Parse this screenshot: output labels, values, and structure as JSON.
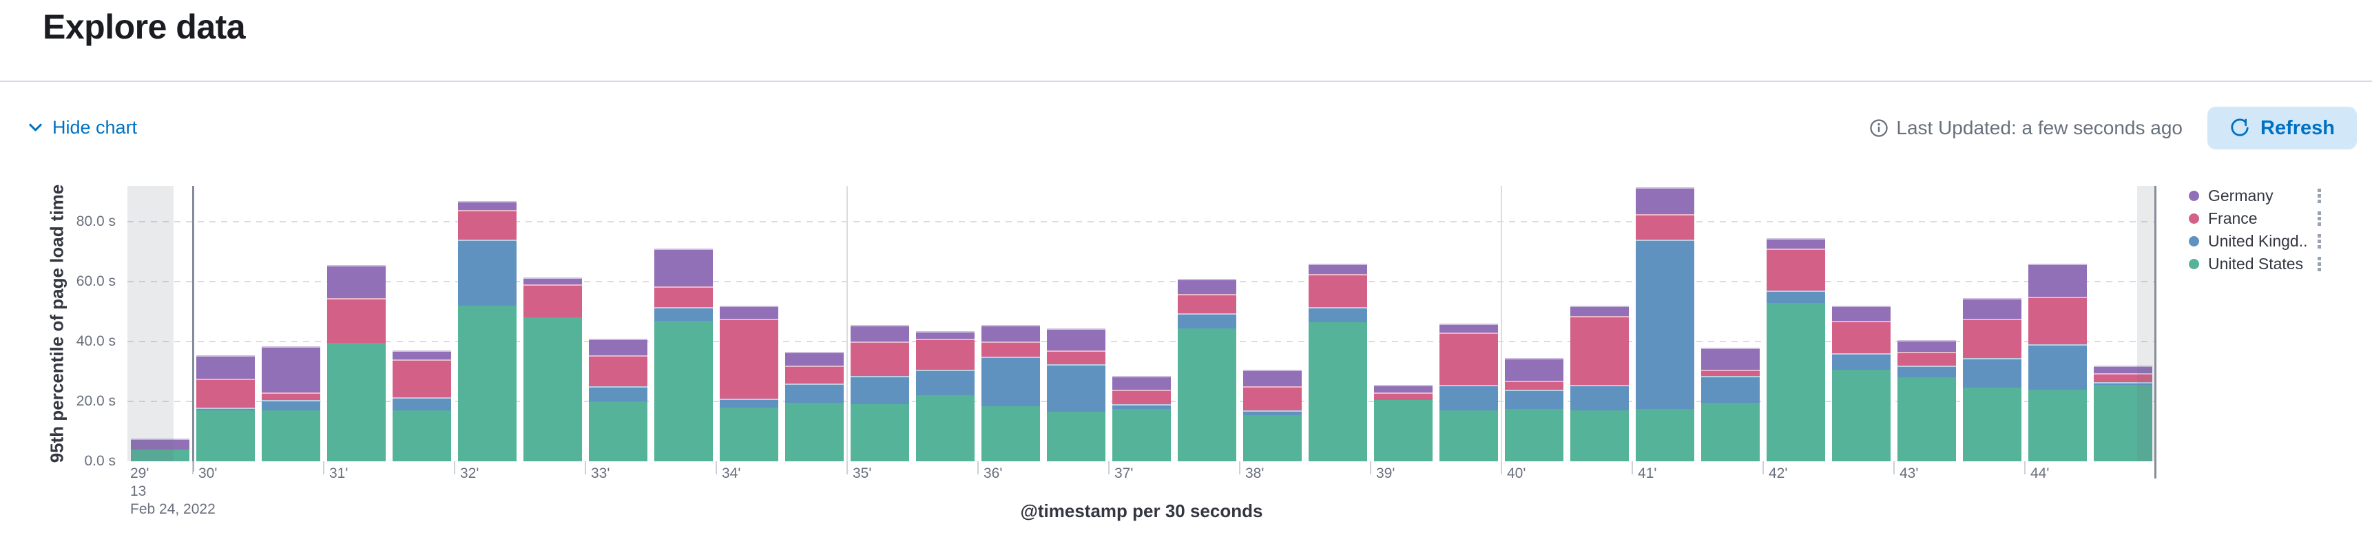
{
  "header": {
    "title": "Explore data"
  },
  "toolbar": {
    "hide_chart_label": "Hide chart",
    "last_updated_label": "Last Updated: a few seconds ago",
    "refresh_label": "Refresh"
  },
  "colors": {
    "accent_blue": "#0071c2",
    "refresh_button_bg": "#d2e7f8",
    "muted_text": "#69707D",
    "title_text": "#1a1c21",
    "axis_text": "#69707D",
    "axis_title_text": "#343741",
    "divider": "#D3DAE6",
    "gridline": "#d8dce3",
    "legend_text": "#343741",
    "legend_action": "#98A2B3"
  },
  "chart_data": {
    "type": "bar",
    "stacked": true,
    "xlabel": "@timestamp per 30 seconds",
    "ylabel": "95th percentile of page load time",
    "unit": "s",
    "ylim": [
      0,
      92
    ],
    "grid": "dashed-horizontal",
    "date": "Feb 24, 2022",
    "x_interval_seconds": 30,
    "categories": [
      "13:29:30",
      "13:30:00",
      "13:30:30",
      "13:31:00",
      "13:31:30",
      "13:32:00",
      "13:32:30",
      "13:33:00",
      "13:33:30",
      "13:34:00",
      "13:34:30",
      "13:35:00",
      "13:35:30",
      "13:36:00",
      "13:36:30",
      "13:37:00",
      "13:37:30",
      "13:38:00",
      "13:38:30",
      "13:39:00",
      "13:39:30",
      "13:40:00",
      "13:40:30",
      "13:41:00",
      "13:41:30",
      "13:42:00",
      "13:42:30",
      "13:43:00",
      "13:43:30",
      "13:44:00",
      "13:44:30"
    ],
    "series": [
      {
        "name": "United States",
        "legend_label": "United States",
        "color": "#54B399",
        "values": [
          4,
          17,
          17,
          39.5,
          17,
          52,
          48,
          20,
          47,
          18,
          19.5,
          19,
          22,
          18.5,
          16.5,
          17.5,
          44.5,
          15.5,
          46.5,
          20.5,
          17,
          17.5,
          17,
          17.5,
          19.5,
          53,
          30.5,
          28,
          24.5,
          24,
          25.5
        ]
      },
      {
        "name": "United Kingdom",
        "legend_label": "United Kingd...",
        "color": "#6092C0",
        "values": [
          0,
          1,
          3.5,
          0,
          4.5,
          22,
          0,
          5,
          4.5,
          3,
          6.5,
          9.5,
          8.5,
          16.5,
          16,
          1.5,
          5,
          1.5,
          5,
          0,
          8.5,
          6.5,
          8.5,
          56.5,
          9,
          4,
          5.5,
          4,
          10,
          15,
          1
        ]
      },
      {
        "name": "France",
        "legend_label": "France",
        "color": "#D36086",
        "values": [
          0,
          9.5,
          2.5,
          15,
          12.5,
          10,
          11,
          10.5,
          7,
          26.5,
          6,
          11.5,
          10.5,
          5,
          4.5,
          5,
          6.5,
          8,
          11,
          2.5,
          17.5,
          3,
          23,
          8.5,
          2,
          14,
          11,
          4.5,
          13,
          16,
          3
        ]
      },
      {
        "name": "Germany",
        "legend_label": "Germany",
        "color": "#9170B8",
        "values": [
          3.5,
          8,
          15.5,
          11,
          3,
          3,
          2.5,
          5.5,
          12.5,
          4.5,
          4.5,
          5.5,
          2.5,
          5.5,
          7.5,
          4.5,
          5,
          5.5,
          3.5,
          2.5,
          3,
          7.5,
          3.5,
          9,
          7.5,
          3.5,
          5,
          4,
          7,
          11,
          2.5
        ]
      }
    ],
    "y_ticks": [
      {
        "value": 0,
        "label": "0.0 s"
      },
      {
        "value": 20,
        "label": "20.0 s"
      },
      {
        "value": 40,
        "label": "40.0 s"
      },
      {
        "value": 60,
        "label": "60.0 s"
      },
      {
        "value": 80,
        "label": "80.0 s"
      }
    ],
    "x_minute_labels": [
      "29'",
      "30'",
      "31'",
      "32'",
      "33'",
      "34'",
      "35'",
      "36'",
      "37'",
      "38'",
      "39'",
      "40'",
      "41'",
      "42'",
      "43'",
      "44'"
    ],
    "x_first_label_extra_lines": [
      "13",
      "Feb 24, 2022"
    ],
    "v_lines": [
      {
        "at_minute_label": "30'",
        "emphasis": true
      },
      {
        "at_minute_label": "35'",
        "emphasis": false
      },
      {
        "at_minute_label": "40'",
        "emphasis": false
      }
    ],
    "right_edge_line": true,
    "partial_buckets": {
      "first": true,
      "last": true
    },
    "legend": {
      "position": "right",
      "order": [
        "Germany",
        "France",
        "United Kingd...",
        "United States"
      ]
    }
  }
}
